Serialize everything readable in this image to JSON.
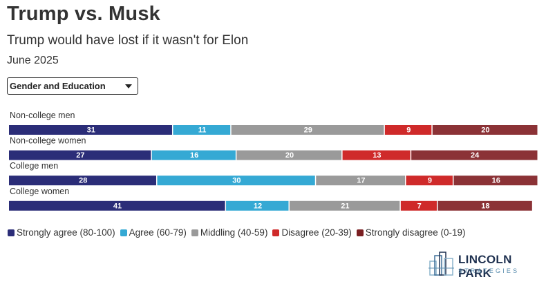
{
  "title": "Trump vs. Musk",
  "subtitle": "Trump would have lost if it wasn't for Elon",
  "date": "June 2025",
  "filter": {
    "selected": "Gender and Education"
  },
  "chart_data": {
    "type": "bar",
    "orientation": "horizontal-stacked",
    "categories": [
      "Non-college men",
      "Non-college women",
      "College men",
      "College women"
    ],
    "series": [
      {
        "name": "Strongly agree (80-100)",
        "color": "#2b2d78",
        "values": [
          31,
          27,
          28,
          41
        ]
      },
      {
        "name": "Agree (60-79)",
        "color": "#35a9d4",
        "values": [
          11,
          16,
          30,
          12
        ]
      },
      {
        "name": "Middling (40-59)",
        "color": "#9a9a9a",
        "values": [
          29,
          20,
          17,
          21
        ]
      },
      {
        "name": "Disagree (20-39)",
        "color": "#cf2a2a",
        "values": [
          9,
          13,
          9,
          7
        ]
      },
      {
        "name": "Strongly disagree (0-19)",
        "color": "#8b3236",
        "values": [
          20,
          24,
          16,
          18
        ]
      }
    ],
    "xlim": [
      0,
      100
    ]
  },
  "legend": [
    {
      "label": "Strongly agree (80-100)",
      "color": "#2b2d78"
    },
    {
      "label": "Agree (60-79)",
      "color": "#35a9d4"
    },
    {
      "label": "Middling (40-59)",
      "color": "#9a9a9a"
    },
    {
      "label": "Disagree (20-39)",
      "color": "#cf2a2a"
    },
    {
      "label": "Strongly disagree (0-19)",
      "color": "#7a1f22"
    }
  ],
  "logo": {
    "name": "LINCOLN PARK",
    "sub": "STRATEGIES"
  }
}
